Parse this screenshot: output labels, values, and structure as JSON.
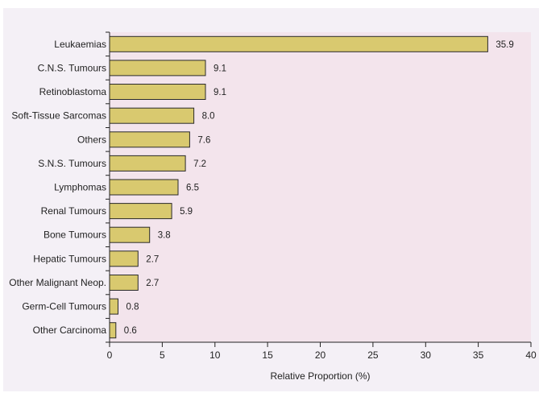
{
  "chart_data": {
    "type": "bar",
    "orientation": "horizontal",
    "categories": [
      "Leukaemias",
      "C.N.S. Tumours",
      "Retinoblastoma",
      "Soft-Tissue Sarcomas",
      "Others",
      "S.N.S. Tumours",
      "Lymphomas",
      "Renal Tumours",
      "Bone Tumours",
      "Hepatic Tumours",
      "Other Malignant Neop.",
      "Germ-Cell Tumours",
      "Other Carcinoma"
    ],
    "values": [
      35.9,
      9.1,
      9.1,
      8.0,
      7.6,
      7.2,
      6.5,
      5.9,
      3.8,
      2.7,
      2.7,
      0.8,
      0.6
    ],
    "value_labels": [
      "35.9",
      "9.1",
      "9.1",
      "8.0",
      "7.6",
      "7.2",
      "6.5",
      "5.9",
      "3.8",
      "2.7",
      "2.7",
      "0.8",
      "0.6"
    ],
    "xlabel": "Relative Proportion (%)",
    "xlim": [
      0,
      40
    ],
    "xticks": [
      "0",
      "5",
      "10",
      "15",
      "20",
      "25",
      "30",
      "35",
      "40"
    ],
    "grid": false,
    "colors": {
      "bar_fill": "#d9c96f",
      "bar_stroke": "#2a2a2a",
      "plot_bg": "#f3e4ec",
      "panel_bg": "#f4f0f6",
      "axis": "#222222"
    }
  }
}
